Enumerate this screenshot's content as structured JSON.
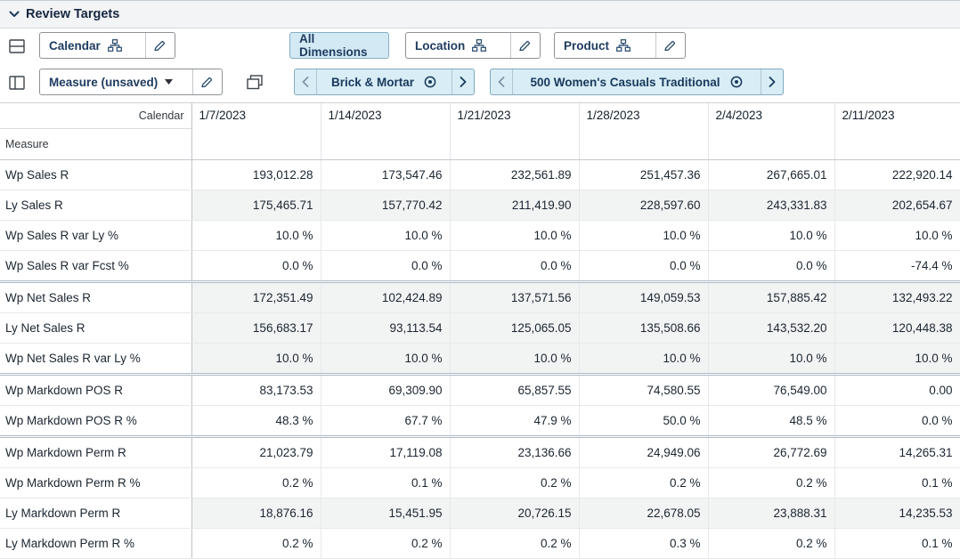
{
  "header": {
    "title": "Review Targets"
  },
  "toolbar": {
    "calendar_button": {
      "label": "Calendar"
    },
    "measure_button": {
      "label": "Measure (unsaved)"
    },
    "all_dimensions_button": {
      "label": "All Dimensions"
    },
    "location_button": {
      "label": "Location"
    },
    "product_button": {
      "label": "Product"
    },
    "location_tile": {
      "label": "Brick & Mortar"
    },
    "product_tile": {
      "label": "500 Women's Casuals Traditional"
    }
  },
  "icons": {
    "collapse_section": "chevron-down ⌄",
    "split_rows": "⊟",
    "split_columns": "◫",
    "windows": "⧉",
    "hierarchy": "org-chart 品",
    "edit": "pencil ✎",
    "dropdown": "caret ▾",
    "previous": "‹",
    "next": "›",
    "target": "bullseye ◎"
  },
  "colors": {
    "accent_blue_bg": "#d9edf6",
    "accent_blue_border": "#7fa9bd",
    "navy_text": "#1d3b5f",
    "shaded_row": "#f2f3f3",
    "group_separator": "#aebac4"
  },
  "table": {
    "corner": {
      "column_dimension": "Calendar",
      "row_dimension": "Measure"
    },
    "columns": [
      "1/7/2023",
      "1/14/2023",
      "1/21/2023",
      "1/28/2023",
      "2/4/2023",
      "2/11/2023"
    ],
    "rows": [
      {
        "label": "Wp Sales R",
        "shaded": false,
        "group_start": false,
        "values": [
          "193,012.28",
          "173,547.46",
          "232,561.89",
          "251,457.36",
          "267,665.01",
          "222,920.14"
        ]
      },
      {
        "label": "Ly Sales R",
        "shaded": true,
        "group_start": false,
        "values": [
          "175,465.71",
          "157,770.42",
          "211,419.90",
          "228,597.60",
          "243,331.83",
          "202,654.67"
        ]
      },
      {
        "label": "Wp Sales R var Ly %",
        "shaded": false,
        "group_start": false,
        "values": [
          "10.0 %",
          "10.0 %",
          "10.0 %",
          "10.0 %",
          "10.0 %",
          "10.0 %"
        ]
      },
      {
        "label": "Wp Sales R var Fcst %",
        "shaded": false,
        "group_start": false,
        "values": [
          "0.0 %",
          "0.0 %",
          "0.0 %",
          "0.0 %",
          "0.0 %",
          "-74.4 %"
        ]
      },
      {
        "label": "Wp Net Sales R",
        "shaded": true,
        "group_start": true,
        "values": [
          "172,351.49",
          "102,424.89",
          "137,571.56",
          "149,059.53",
          "157,885.42",
          "132,493.22"
        ]
      },
      {
        "label": "Ly Net Sales R",
        "shaded": true,
        "group_start": false,
        "values": [
          "156,683.17",
          "93,113.54",
          "125,065.05",
          "135,508.66",
          "143,532.20",
          "120,448.38"
        ]
      },
      {
        "label": "Wp Net Sales R var Ly %",
        "shaded": true,
        "group_start": false,
        "values": [
          "10.0 %",
          "10.0 %",
          "10.0 %",
          "10.0 %",
          "10.0 %",
          "10.0 %"
        ]
      },
      {
        "label": "Wp Markdown POS R",
        "shaded": false,
        "group_start": true,
        "values": [
          "83,173.53",
          "69,309.90",
          "65,857.55",
          "74,580.55",
          "76,549.00",
          "0.00"
        ]
      },
      {
        "label": "Wp Markdown POS R %",
        "shaded": false,
        "group_start": false,
        "values": [
          "48.3 %",
          "67.7 %",
          "47.9 %",
          "50.0 %",
          "48.5 %",
          "0.0 %"
        ]
      },
      {
        "label": "Wp Markdown Perm R",
        "shaded": false,
        "group_start": true,
        "values": [
          "21,023.79",
          "17,119.08",
          "23,136.66",
          "24,949.06",
          "26,772.69",
          "14,265.31"
        ]
      },
      {
        "label": "Wp Markdown Perm R %",
        "shaded": false,
        "group_start": false,
        "values": [
          "0.2 %",
          "0.1 %",
          "0.2 %",
          "0.2 %",
          "0.2 %",
          "0.1 %"
        ]
      },
      {
        "label": "Ly Markdown Perm R",
        "shaded": true,
        "group_start": false,
        "values": [
          "18,876.16",
          "15,451.95",
          "20,726.15",
          "22,678.05",
          "23,888.31",
          "14,235.53"
        ]
      },
      {
        "label": "Ly Markdown Perm R %",
        "shaded": false,
        "group_start": false,
        "values": [
          "0.2 %",
          "0.2 %",
          "0.2 %",
          "0.3 %",
          "0.2 %",
          "0.1 %"
        ]
      }
    ]
  }
}
